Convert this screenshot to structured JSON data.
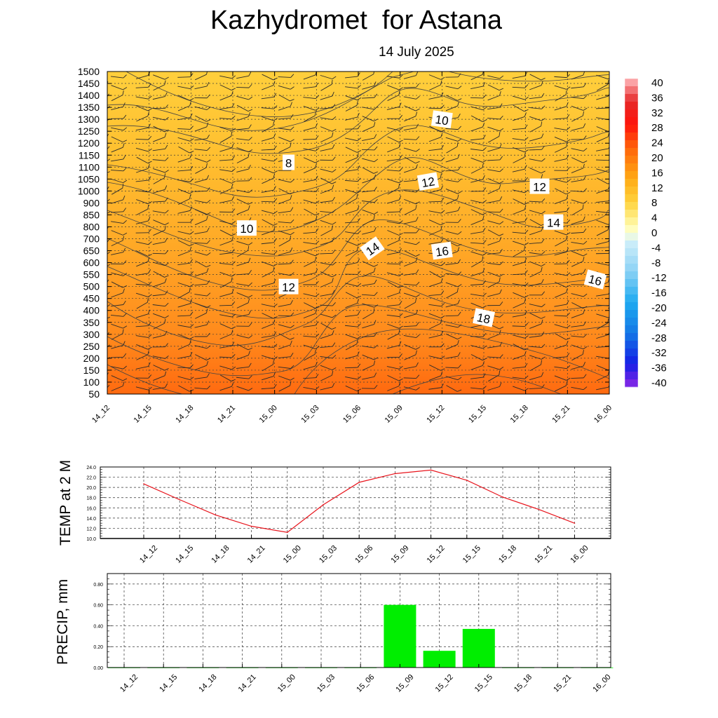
{
  "header": {
    "title": "Kazhydromet  for Astana",
    "date": "14 July 2025"
  },
  "time_labels": [
    "14_12",
    "14_15",
    "14_18",
    "14_21",
    "15_00",
    "15_03",
    "15_06",
    "15_09",
    "15_12",
    "15_15",
    "15_18",
    "15_21",
    "16_00"
  ],
  "colors": {
    "temp_line": "#e8141c",
    "precip_bar": "#00ee00",
    "grid": "#555555",
    "contour": "#444444"
  },
  "chart_data": [
    {
      "type": "heatmap",
      "title": "Kazhydromet  for Astana",
      "subtitle": "14 July 2025",
      "x": [
        "14_12",
        "14_15",
        "14_18",
        "14_21",
        "15_00",
        "15_03",
        "15_06",
        "15_09",
        "15_12",
        "15_15",
        "15_18",
        "15_21",
        "16_00"
      ],
      "y_ticks": [
        1500,
        1450,
        1400,
        1350,
        1300,
        1250,
        1200,
        1150,
        1100,
        1050,
        1000,
        900,
        850,
        800,
        700,
        650,
        600,
        550,
        500,
        450,
        400,
        350,
        300,
        250,
        200,
        150,
        100,
        50
      ],
      "colorbar": {
        "ticks": [
          40,
          36,
          32,
          28,
          24,
          20,
          16,
          12,
          8,
          4,
          0,
          -4,
          -8,
          -12,
          -16,
          -20,
          -24,
          -28,
          -32,
          -36,
          -40
        ],
        "min": -40,
        "max": 40
      },
      "contour_labels": [
        {
          "text": "10",
          "x": "15_12",
          "y": 1300
        },
        {
          "text": "8",
          "x": "15_01",
          "y": 1120
        },
        {
          "text": "12",
          "x": "15_11",
          "y": 1040
        },
        {
          "text": "12",
          "x": "15_19",
          "y": 1020
        },
        {
          "text": "10",
          "x": "14_22",
          "y": 790
        },
        {
          "text": "14",
          "x": "15_20",
          "y": 820
        },
        {
          "text": "14",
          "x": "15_07",
          "y": 660
        },
        {
          "text": "16",
          "x": "15_12",
          "y": 650
        },
        {
          "text": "12",
          "x": "15_01",
          "y": 500
        },
        {
          "text": "16",
          "x": "15_23",
          "y": 530
        },
        {
          "text": "18",
          "x": "15_15",
          "y": 370
        }
      ],
      "grid": true
    },
    {
      "type": "line",
      "ylabel": "TEMP at 2 M",
      "x": [
        "14_12",
        "14_15",
        "14_18",
        "14_21",
        "15_00",
        "15_03",
        "15_06",
        "15_09",
        "15_12",
        "15_15",
        "15_18",
        "15_21",
        "16_00"
      ],
      "values": [
        20.7,
        17.6,
        14.6,
        12.4,
        11.2,
        16.6,
        21.0,
        22.7,
        23.4,
        21.4,
        18.1,
        15.7,
        13.0
      ],
      "y_ticks": [
        "24.0",
        "22.0",
        "20.0",
        "18.0",
        "16.0",
        "14.0",
        "12.0",
        "10.0"
      ],
      "ylim": [
        10,
        24
      ],
      "grid": true
    },
    {
      "type": "bar",
      "ylabel": "PRECIP, mm",
      "categories": [
        "14_12",
        "14_15",
        "14_18",
        "14_21",
        "15_00",
        "15_03",
        "15_06",
        "15_09",
        "15_12",
        "15_15",
        "15_18",
        "15_21",
        "16_00"
      ],
      "values": [
        0,
        0,
        0,
        0,
        0,
        0,
        0,
        0.6,
        0.16,
        0.37,
        0,
        0,
        0
      ],
      "y_ticks": [
        "0.80",
        "0.60",
        "0.40",
        "0.20",
        "0.00"
      ],
      "ylim": [
        0,
        0.9
      ],
      "grid": true
    }
  ]
}
